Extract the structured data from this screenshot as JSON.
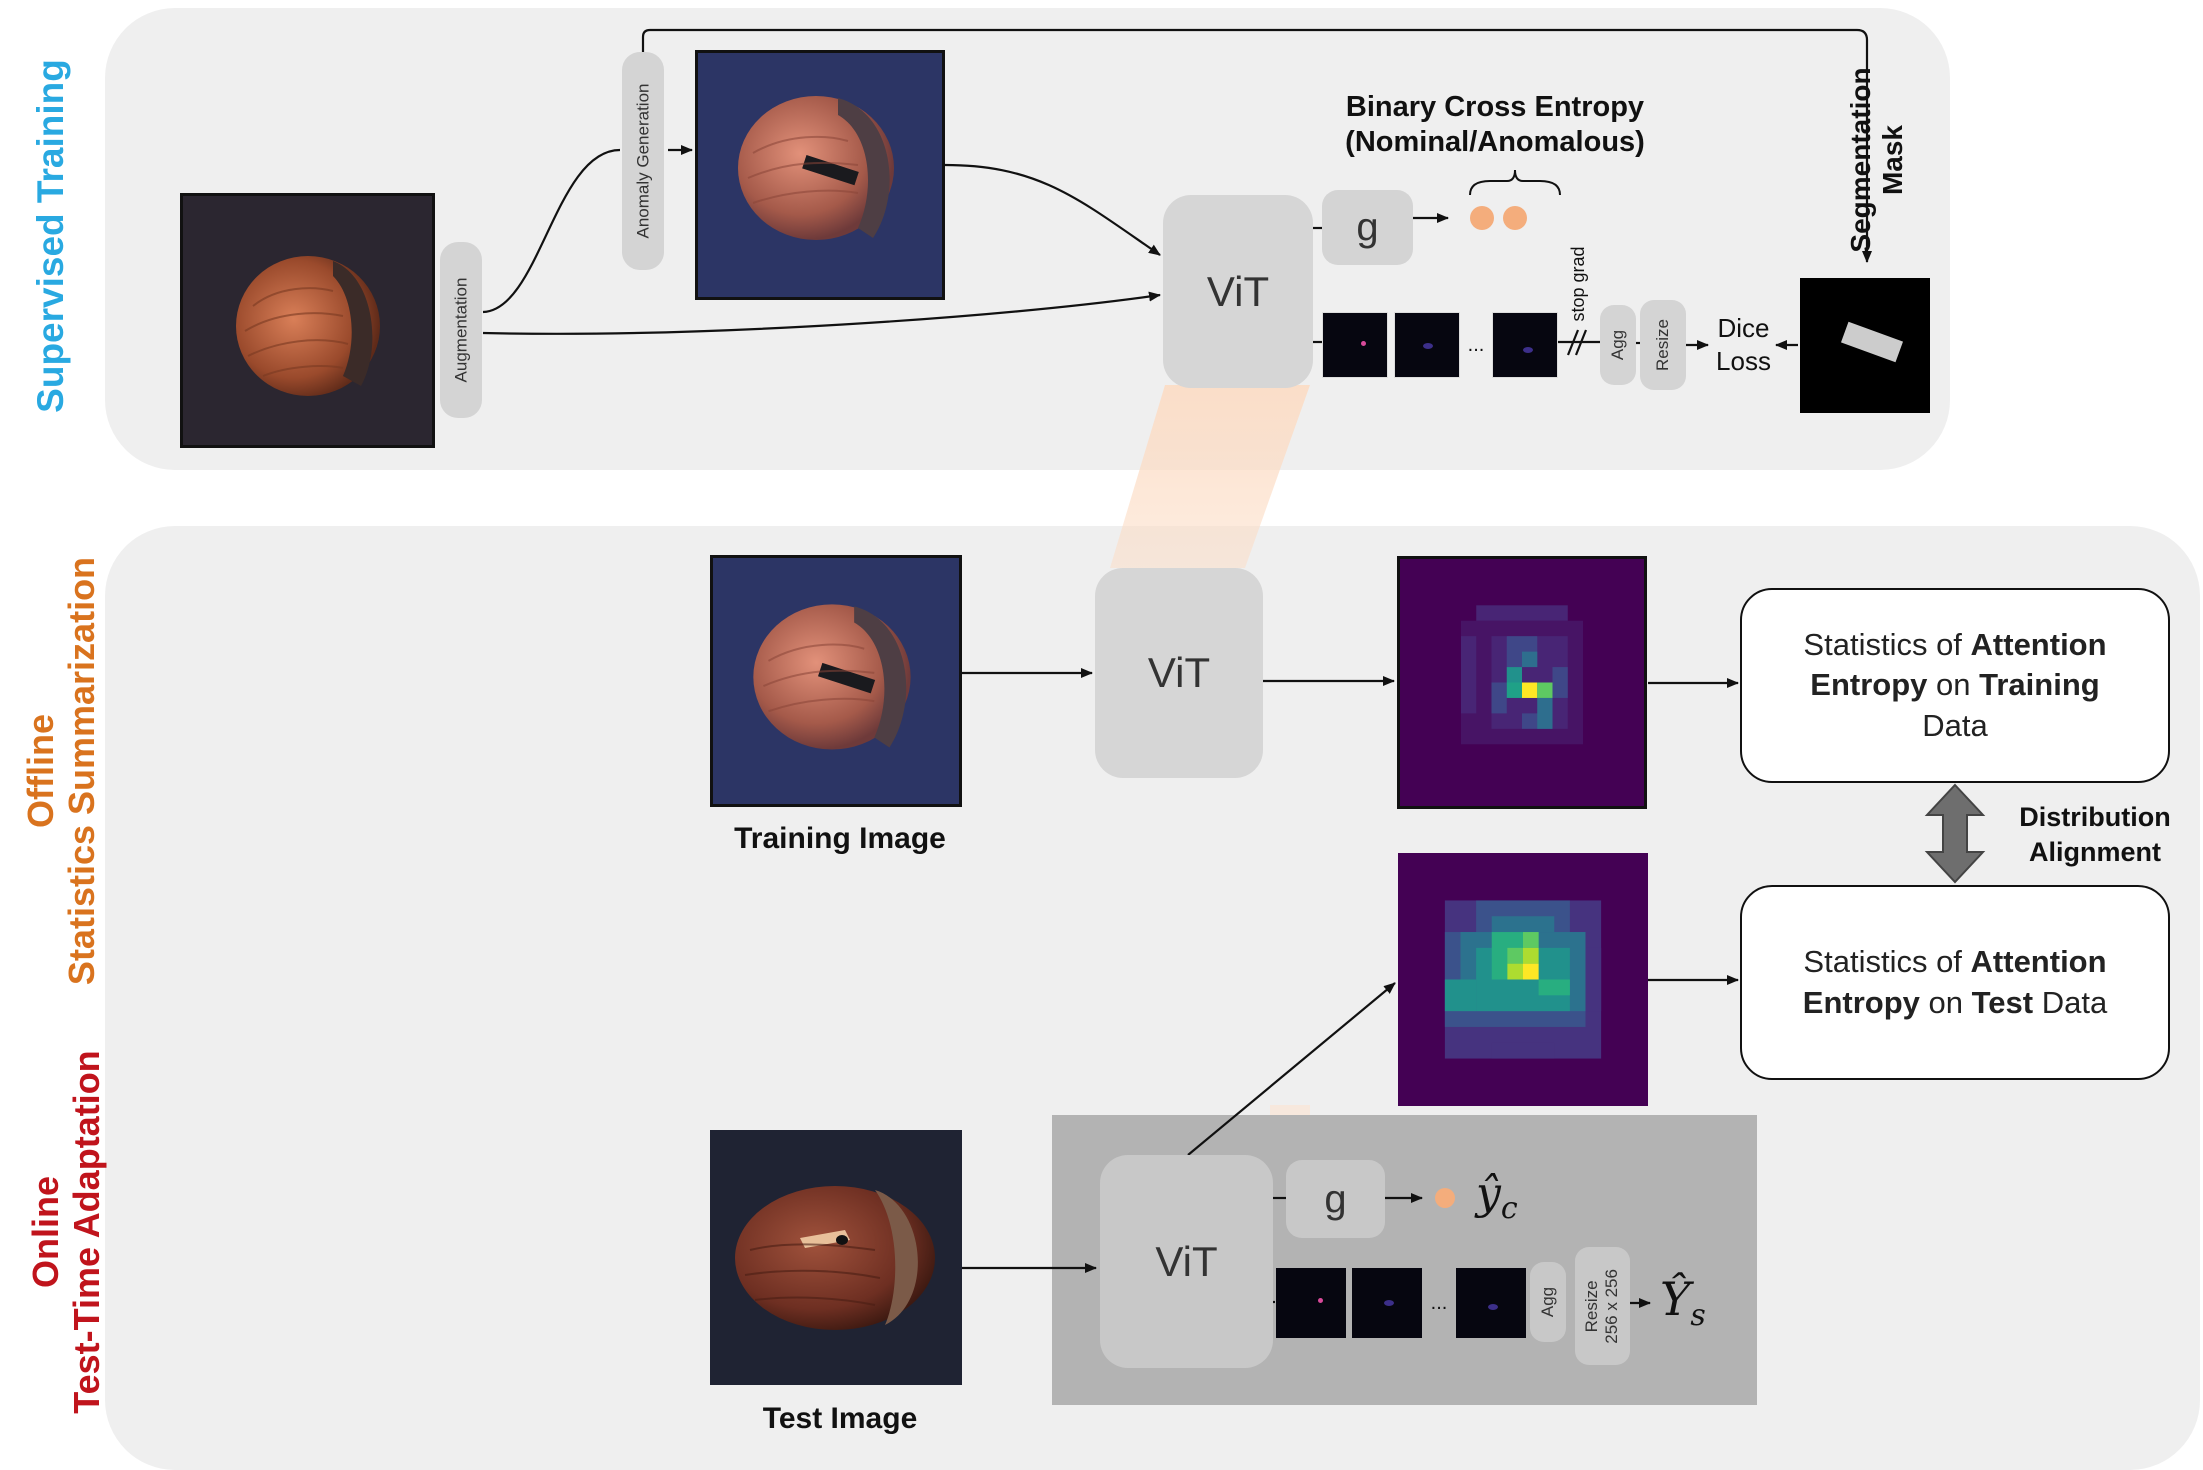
{
  "sections": {
    "supervised": {
      "label": "Supervised Training",
      "color": "#29a9e1"
    },
    "offline": {
      "line1": "Offline",
      "line2": "Statistics Summarization",
      "color": "#d9731e"
    },
    "online": {
      "line1": "Online",
      "line2": "Test-Time Adaptation",
      "color": "#c0141c"
    }
  },
  "supervised_training": {
    "augmentation": "Augmentation",
    "anomaly_generation": "Anomaly Generation",
    "vit": "ViT",
    "g": "g",
    "bce_line1": "Binary Cross Entropy",
    "bce_line2": "(Nominal/Anomalous)",
    "ellipsis": "...",
    "stop_grad": "stop grad",
    "agg": "Agg",
    "resize": "Resize",
    "dice_line1": "Dice",
    "dice_line2": "Loss",
    "seg_mask_line1": "Segmentation",
    "seg_mask_line2": "Mask"
  },
  "offline_stats": {
    "vit": "ViT",
    "training_image_caption": "Training Image",
    "stat_train": {
      "p1": "Statistics of ",
      "b1": "Attention",
      "b2": "Entropy",
      "p2": " on ",
      "b3": "Training",
      "p3": "Data"
    },
    "stat_test": {
      "p1": "Statistics of ",
      "b1": "Attention",
      "b2": "Entropy",
      "p2": " on ",
      "b3": "Test",
      "p3": " Data"
    },
    "distribution_line1": "Distribution",
    "distribution_line2": "Alignment"
  },
  "online_tta": {
    "vit": "ViT",
    "g": "g",
    "y_c": "ŷ",
    "y_c_sub": "c",
    "ellipsis": "...",
    "agg": "Agg",
    "resize_line1": "Resize",
    "resize_line2": "256 x 256",
    "y_s": "Ŷ",
    "y_s_sub": "s",
    "test_image_caption": "Test Image"
  },
  "colors": {
    "orange_dot": "#f4ad7c",
    "viridis_dark": "#440154",
    "viridis_yellow": "#fde725"
  }
}
